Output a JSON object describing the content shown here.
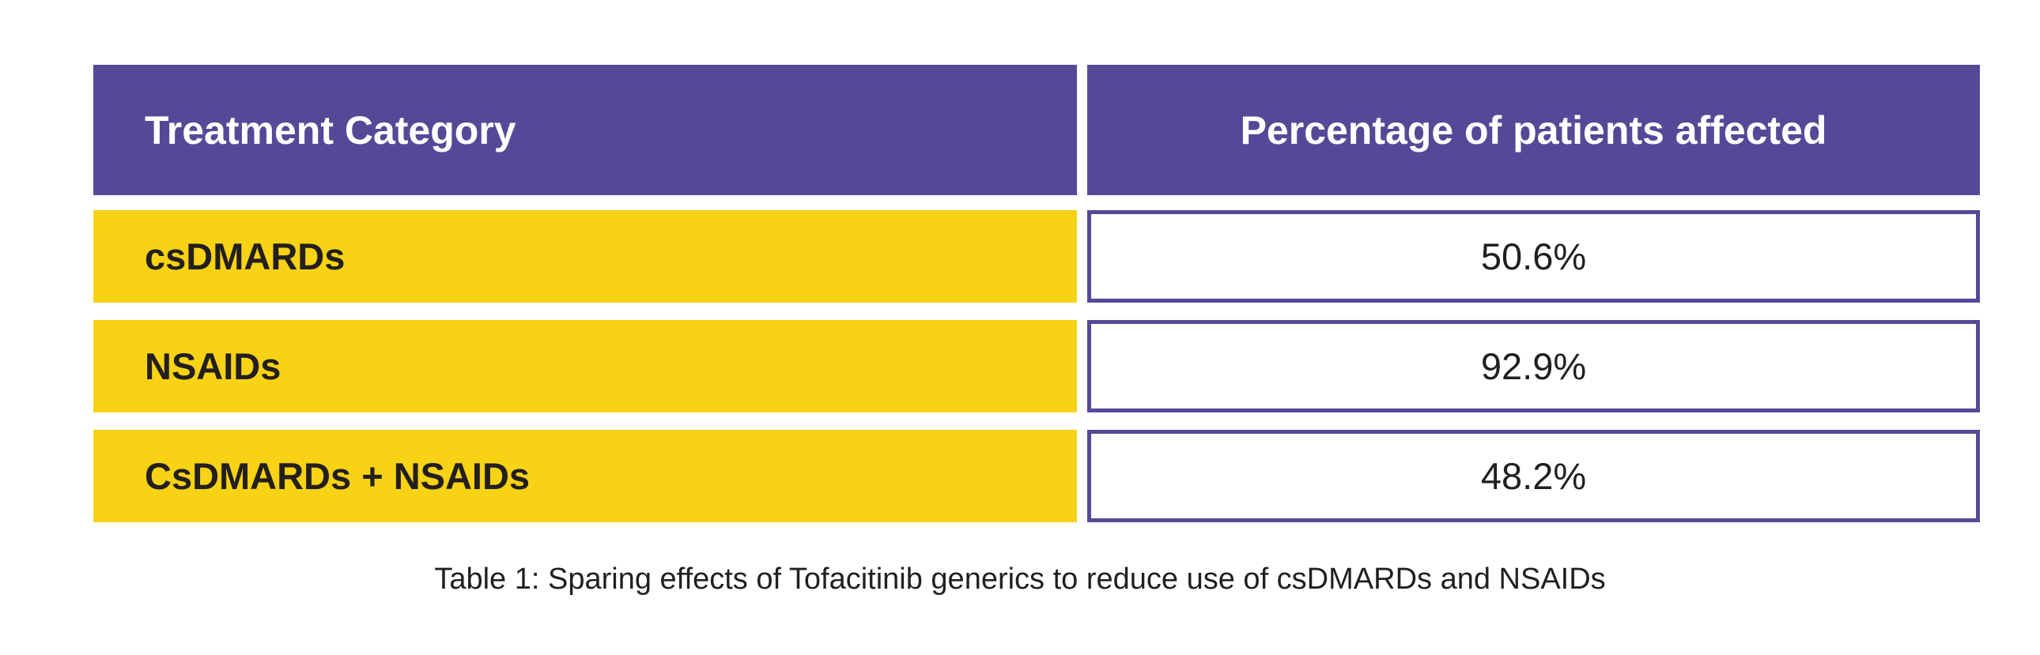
{
  "table": {
    "headers": [
      "Treatment Category",
      "Percentage of patients affected"
    ],
    "rows": [
      {
        "category": "csDMARDs",
        "percentage": "50.6%"
      },
      {
        "category": "NSAIDs",
        "percentage": "92.9%"
      },
      {
        "category": "CsDMARDs + NSAIDs",
        "percentage": "48.2%"
      }
    ],
    "caption": "Table 1: Sparing effects of Tofacitinib generics to reduce use of csDMARDs and NSAIDs"
  },
  "colors": {
    "header": "#574897",
    "category_fill": "#f7d215",
    "text": "#231f20"
  }
}
